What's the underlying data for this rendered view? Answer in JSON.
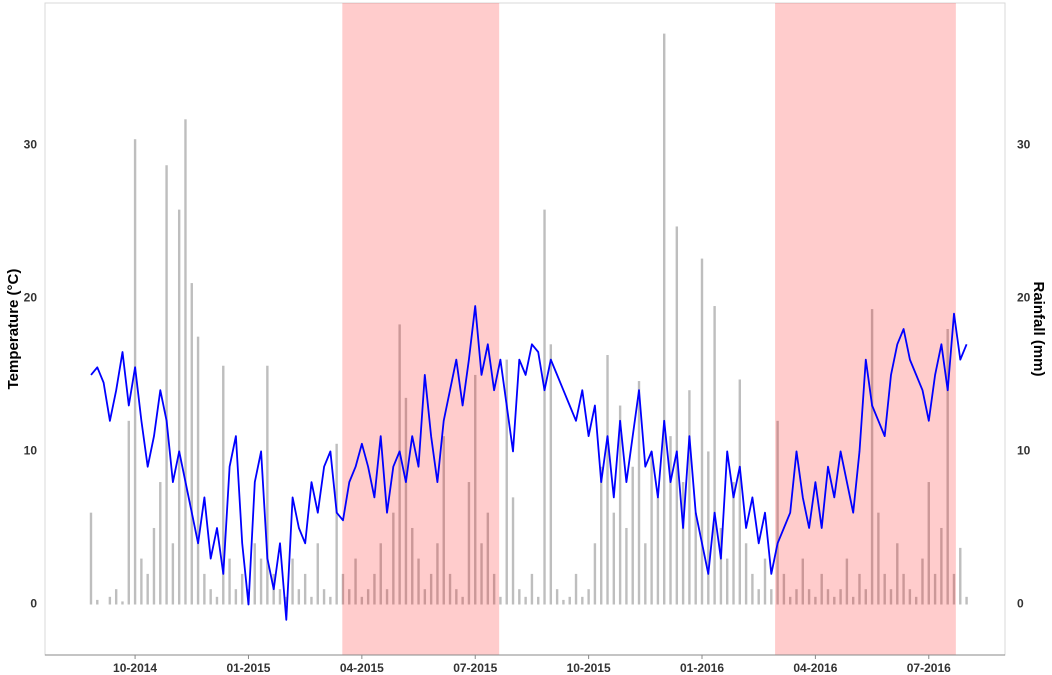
{
  "chart_data": {
    "type": "bar-line",
    "y_label": "Temperature (°C)",
    "y2_label": "Rainfall (mm)",
    "categories": [
      null,
      null,
      null,
      null,
      null,
      null,
      null,
      null,
      null,
      null,
      null,
      null,
      null,
      null,
      null,
      null,
      null,
      null,
      null,
      null,
      null,
      null,
      null,
      null,
      null,
      null,
      null,
      null,
      null,
      null,
      null,
      null,
      null,
      null,
      null,
      null,
      null,
      null,
      null,
      null,
      null,
      null,
      null,
      null,
      null,
      null,
      null,
      null,
      null,
      null,
      null,
      null,
      null,
      null,
      null,
      null,
      null,
      null,
      null,
      null,
      null,
      null,
      null,
      null,
      null,
      null,
      null,
      null,
      null,
      null,
      null,
      null,
      null,
      null,
      null,
      null,
      null,
      null,
      null,
      null,
      null,
      null,
      null,
      null,
      null,
      null,
      null,
      null,
      null,
      null,
      null,
      null,
      null,
      null,
      null,
      null,
      null,
      null,
      null,
      null,
      null,
      null,
      null,
      null,
      null,
      null,
      null,
      null,
      null,
      null,
      null,
      null,
      null,
      null,
      null,
      null,
      null,
      null,
      null,
      null,
      null,
      null,
      null,
      null,
      null,
      null,
      null,
      null,
      null,
      null,
      null,
      null,
      null,
      null,
      null,
      null,
      null,
      null,
      null,
      null
    ],
    "xlim": [
      -7.3,
      145.1
    ],
    "xticks": [
      {
        "value": 7,
        "label": "10-2014"
      },
      {
        "value": 25,
        "label": "01-2015"
      },
      {
        "value": 43,
        "label": "04-2015"
      },
      {
        "value": 61,
        "label": "07-2015"
      },
      {
        "value": 79,
        "label": "10-2015"
      },
      {
        "value": 97,
        "label": "01-2016"
      },
      {
        "value": 115,
        "label": "04-2016"
      },
      {
        "value": 133,
        "label": "07-2016"
      }
    ],
    "ylim": [
      -3.3,
      39.3
    ],
    "yticks": [
      0,
      10,
      20,
      30
    ],
    "y2lim": [
      -3.3,
      39.3
    ],
    "y2ticks": [
      0,
      10,
      20,
      30
    ],
    "grid": true,
    "highlight_spans": [
      [
        39.9,
        64.8
      ],
      [
        108.6,
        137.3
      ]
    ],
    "highlight_color": "rgba(255,0,0,0.2)",
    "series": [
      {
        "type": "bar",
        "axis": "y2",
        "color": "#bebebe",
        "values": [
          6,
          0.3,
          0,
          0.5,
          1,
          0.2,
          12,
          30.4,
          3,
          2,
          5,
          8,
          28.7,
          4,
          25.8,
          31.7,
          21,
          17.5,
          2,
          1,
          0.5,
          15.6,
          3,
          1,
          2,
          1,
          4,
          3,
          15.6,
          2,
          1,
          0.5,
          3,
          1,
          2,
          0.5,
          4,
          1,
          0.5,
          10.5,
          2,
          1,
          3,
          0.5,
          1,
          2,
          4,
          1,
          6,
          18.3,
          13.5,
          5,
          3,
          1,
          2,
          4,
          11,
          2,
          1,
          0.5,
          8,
          15,
          4,
          6,
          2,
          0.5,
          16,
          7,
          1,
          0.5,
          2,
          0.5,
          25.8,
          17,
          1,
          0.3,
          0.5,
          2,
          0.5,
          1,
          4,
          9,
          16.3,
          6,
          13,
          5,
          9,
          14.6,
          4,
          10,
          7,
          37.3,
          11,
          24.7,
          8,
          14,
          6,
          22.6,
          10,
          19.5,
          5,
          3,
          8,
          14.7,
          4,
          2,
          1,
          3,
          1,
          12,
          2,
          0.5,
          1,
          3,
          1,
          0.5,
          2,
          1,
          0.5,
          1,
          3,
          0.5,
          2,
          1,
          19.3,
          6,
          2,
          1,
          4,
          2,
          1,
          0.5,
          3,
          8,
          2,
          5,
          18,
          2,
          3.7,
          0.5
        ]
      },
      {
        "type": "line",
        "color": "#0000ff",
        "values": [
          15,
          15.5,
          14.5,
          12,
          14,
          16.5,
          13,
          15.5,
          12,
          9,
          11,
          14,
          12,
          8,
          10,
          8,
          6,
          4,
          7,
          3,
          5,
          2,
          9,
          11,
          4,
          0,
          8,
          10,
          3,
          1,
          4,
          -1,
          7,
          5,
          4,
          8,
          6,
          9,
          10,
          6,
          5.5,
          8,
          9,
          10.5,
          9,
          7,
          11,
          6,
          9,
          10,
          8,
          11,
          9,
          15,
          11,
          8,
          12,
          14,
          16,
          13,
          16,
          19.5,
          15,
          17,
          14,
          16,
          13,
          10,
          16,
          15,
          17,
          16.5,
          14,
          16,
          15,
          14,
          13,
          12,
          14,
          11,
          13,
          8,
          11,
          7,
          12,
          8,
          11,
          14,
          9,
          10,
          7,
          12,
          8,
          10,
          5,
          11,
          6,
          4,
          2,
          6,
          3,
          10,
          7,
          9,
          5,
          7,
          4,
          6,
          2,
          4,
          5,
          6,
          10,
          7,
          5,
          8,
          5,
          9,
          7,
          10,
          8,
          6,
          10,
          16,
          13,
          12,
          11,
          15,
          17,
          18,
          16,
          15,
          14,
          12,
          15,
          17,
          14,
          19,
          16,
          17
        ]
      }
    ]
  }
}
